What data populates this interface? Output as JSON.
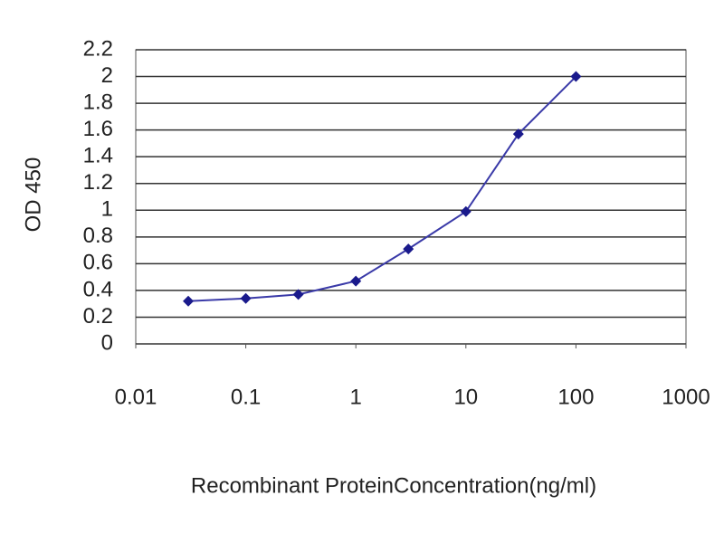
{
  "chart_data": {
    "type": "line",
    "x_label": "Recombinant ProteinConcentration(ng/ml)",
    "y_label": "OD 450",
    "x": [
      0.03,
      0.1,
      0.3,
      1,
      3,
      10,
      30,
      100
    ],
    "series": [
      {
        "name": "OD 450",
        "color": "#1a1a8c",
        "values": [
          0.32,
          0.34,
          0.37,
          0.47,
          0.71,
          0.99,
          1.57,
          2.0
        ]
      }
    ],
    "xlim": [
      0.01,
      1000
    ],
    "xticks": [
      0.01,
      0.1,
      1,
      10,
      100,
      1000
    ],
    "log_x": true,
    "ylim": [
      0,
      2.2
    ],
    "yticks": [
      0,
      0.2,
      0.4,
      0.6,
      0.8,
      1,
      1.2,
      1.4,
      1.6,
      1.8,
      2,
      2.2
    ],
    "grid": true
  }
}
